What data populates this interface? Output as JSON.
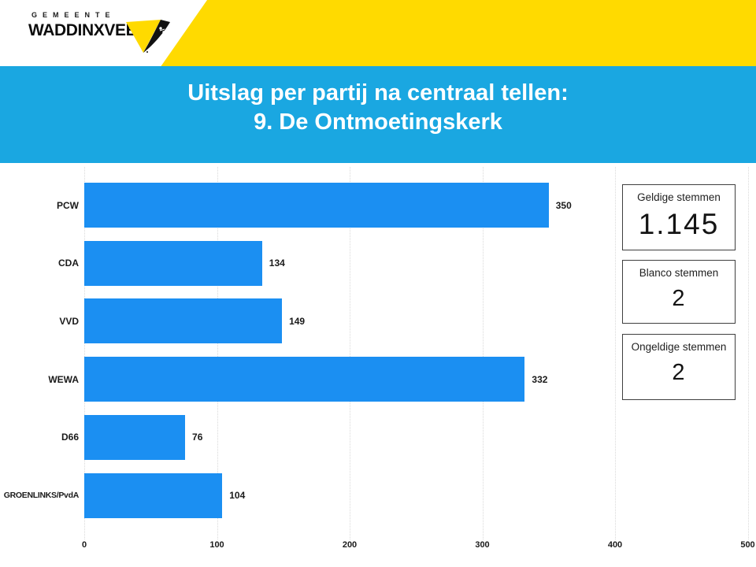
{
  "logo": {
    "supertitle": "GEMEENTE",
    "title": "WADDINXVEEN"
  },
  "title_band": {
    "line1": "Uitslag per partij na centraal tellen:",
    "line2": "9. De Ontmoetingskerk"
  },
  "chart_data": {
    "type": "bar",
    "orientation": "horizontal",
    "title": "",
    "categories": [
      "PCW",
      "CDA",
      "VVD",
      "WEWA",
      "D66",
      "GROENLINKS/PvdA"
    ],
    "values": [
      350,
      134,
      149,
      332,
      76,
      104
    ],
    "xlim": [
      0,
      500
    ],
    "xticks": [
      "0",
      "100",
      "200",
      "300",
      "400",
      "500"
    ],
    "grid": "vertical-dotted",
    "legend": "none",
    "bar_color": "#1b8ff2"
  },
  "stat_boxes": [
    {
      "label": "Geldige stemmen",
      "value": "1.145"
    },
    {
      "label": "Blanco stemmen",
      "value": "2"
    },
    {
      "label": "Ongeldige stemmen",
      "value": "2"
    }
  ],
  "colors": {
    "band_blue": "#1aa7e1",
    "bar_blue": "#1b8ff2",
    "accent_yellow": "#ffda00",
    "grid_gray": "#d9d9d9"
  }
}
